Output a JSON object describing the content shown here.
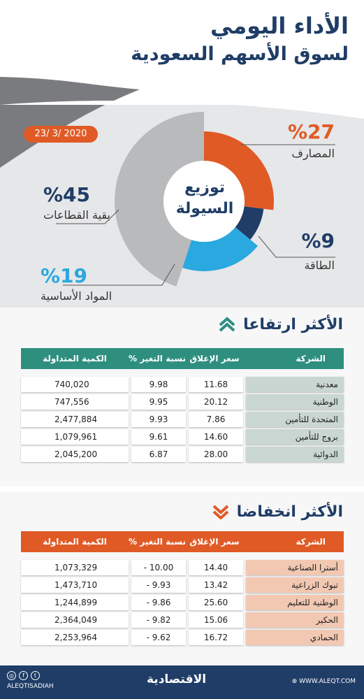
{
  "header": {
    "title_line1": "الأداء اليومي",
    "title_line2": "لسوق الأسهم السعودية"
  },
  "date_badge": "23/ 3/ 2020",
  "colors": {
    "navy": "#1f3d66",
    "orange": "#e05a26",
    "gray": "#b9babc",
    "blue": "#2aa8e0",
    "teal": "#2f8f7f",
    "green_cell": "#c9d6d1",
    "orange_cell": "#f2c8b2"
  },
  "chart_data": {
    "type": "pie",
    "title": "توزيع السيولة",
    "center_line1": "توزيع",
    "center_line2": "السيولة",
    "slices": [
      {
        "label": "المصارف",
        "value": 27,
        "pct_text": "%27",
        "color": "#e05a26"
      },
      {
        "label": "الطاقة",
        "value": 9,
        "pct_text": "%9",
        "color": "#1f3d66"
      },
      {
        "label": "المواد الأساسية",
        "value": 19,
        "pct_text": "%19",
        "color": "#2aa8e0"
      },
      {
        "label": "بقية القطاعات",
        "value": 45,
        "pct_text": "%45",
        "color": "#b9babc"
      }
    ]
  },
  "gainers": {
    "title": "الأكثر ارتفاعا",
    "headers": {
      "company": "الشركة",
      "close": "سعر الإغلاق",
      "change": "نسبة التغير %",
      "volume": "الكمية المتداولة"
    },
    "rows": [
      {
        "company": "معدنية",
        "close": "11.68",
        "change": "9.98",
        "volume": "740,020"
      },
      {
        "company": "الوطنية",
        "close": "20.12",
        "change": "9.95",
        "volume": "747,556"
      },
      {
        "company": "المتحدة للتأمين",
        "close": "7.86",
        "change": "9.93",
        "volume": "2,477,884"
      },
      {
        "company": "بروج للتأمين",
        "close": "14.60",
        "change": "9.61",
        "volume": "1,079,961"
      },
      {
        "company": "الدوائية",
        "close": "28.00",
        "change": "6.87",
        "volume": "2,045,200"
      }
    ]
  },
  "losers": {
    "title": "الأكثر انخفاضا",
    "headers": {
      "company": "الشركة",
      "close": "سعر الإغلاق",
      "change": "نسبة التغير %",
      "volume": "الكمية المتداولة"
    },
    "rows": [
      {
        "company": "أسترا الصناعية",
        "close": "14.40",
        "change": "10.00 -",
        "volume": "1,073,329"
      },
      {
        "company": "تبوك الزراعية",
        "close": "13.42",
        "change": "9.93 -",
        "volume": "1,473,710"
      },
      {
        "company": "الوطنية للتعليم",
        "close": "25.60",
        "change": "9.86 -",
        "volume": "1,244,899"
      },
      {
        "company": "الحكير",
        "close": "15.06",
        "change": "9.82 -",
        "volume": "2,364,049"
      },
      {
        "company": "الحمادي",
        "close": "16.72",
        "change": "9.62 -",
        "volume": "2,253,964"
      }
    ]
  },
  "footer": {
    "handle": "ALEQTISADIAH",
    "website": "WWW.ALEQT.COM",
    "logo": "الاقتصادية",
    "icons": [
      "instagram-icon",
      "facebook-icon",
      "twitter-icon",
      "globe-icon"
    ]
  }
}
